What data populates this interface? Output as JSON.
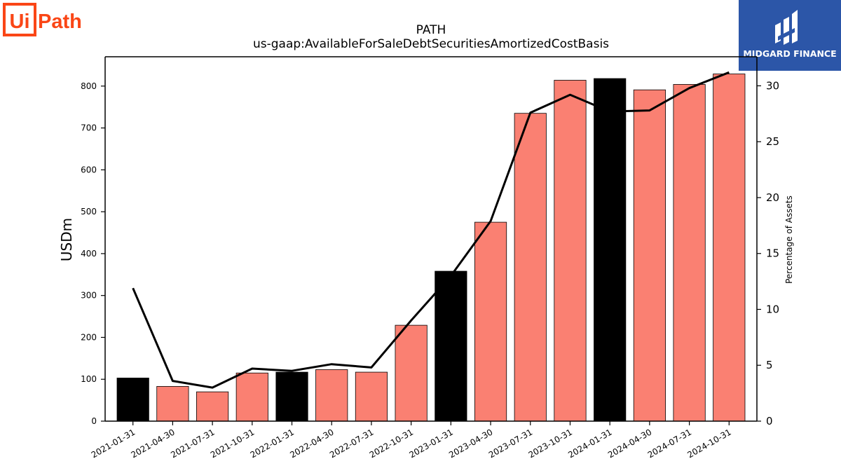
{
  "brand": {
    "logo_text": "UiPath",
    "accent": "#fa4616"
  },
  "partner": {
    "name": "MIDGARD FINANCE",
    "background": "#2c56a8"
  },
  "chart_data": {
    "type": "bar",
    "title": "PATH",
    "subtitle": "us-gaap:AvailableForSaleDebtSecuritiesAmortizedCostBasis",
    "ylabel": "USDm",
    "ylabel_right": "Percentage of Assets",
    "categories": [
      "2021-01-31",
      "2021-04-30",
      "2021-07-31",
      "2021-10-31",
      "2022-01-31",
      "2022-04-30",
      "2022-07-31",
      "2022-10-31",
      "2023-01-31",
      "2023-04-30",
      "2023-07-31",
      "2023-10-31",
      "2024-01-31",
      "2024-04-30",
      "2024-07-31",
      "2024-10-31"
    ],
    "series": [
      {
        "type": "bar",
        "axis": "left",
        "values": [
          103,
          83,
          70,
          115,
          117,
          123,
          117,
          229,
          358,
          475,
          735,
          814,
          818,
          791,
          804,
          829
        ],
        "colors": [
          "#000000",
          "#fa8072",
          "#fa8072",
          "#fa8072",
          "#000000",
          "#fa8072",
          "#fa8072",
          "#fa8072",
          "#000000",
          "#fa8072",
          "#fa8072",
          "#fa8072",
          "#000000",
          "#fa8072",
          "#fa8072",
          "#fa8072"
        ]
      },
      {
        "type": "line",
        "axis": "right",
        "color": "#000000",
        "values": [
          11.9,
          3.6,
          3.0,
          4.7,
          4.5,
          5.1,
          4.8,
          9.0,
          13.0,
          17.9,
          27.6,
          29.2,
          27.7,
          27.8,
          29.8,
          31.2
        ]
      }
    ],
    "ylim": [
      0,
      870
    ],
    "ylim_right": [
      0,
      32.6
    ],
    "yticks": [
      0,
      100,
      200,
      300,
      400,
      500,
      600,
      700,
      800
    ],
    "yticks_right": [
      0,
      5,
      10,
      15,
      20,
      25,
      30
    ],
    "grid": false,
    "legend": "none"
  }
}
